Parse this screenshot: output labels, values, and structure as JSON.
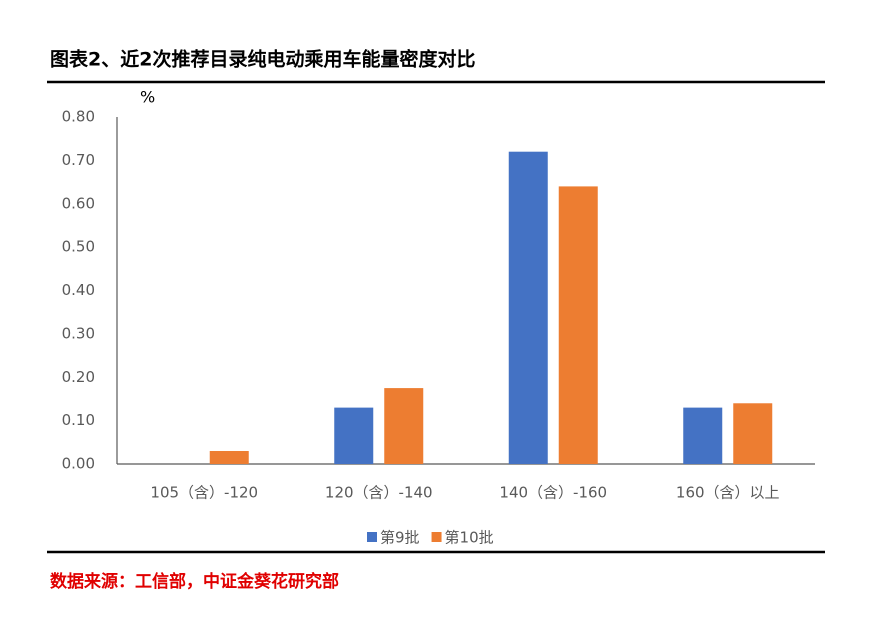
{
  "chart_data": {
    "type": "bar",
    "title": "图表2、近2次推荐目录纯电动乘用车能量密度对比",
    "y_label": "%",
    "categories": [
      "105（含）-120",
      "120（含）-140",
      "140（含）-160",
      "160（含）以上"
    ],
    "series": [
      {
        "name": "第9批",
        "color": "#4472c4",
        "values": [
          0,
          0.13,
          0.72,
          0.13
        ]
      },
      {
        "name": "第10批",
        "color": "#ed7d31",
        "values": [
          0.03,
          0.175,
          0.64,
          0.14
        ]
      }
    ],
    "ylim": [
      0,
      0.8
    ],
    "yticks": [
      {
        "value": 0,
        "label": "0.00"
      },
      {
        "value": 0.1,
        "label": "0.10"
      },
      {
        "value": 0.2,
        "label": "0.20"
      },
      {
        "value": 0.3,
        "label": "0.30"
      },
      {
        "value": 0.4,
        "label": "0.40"
      },
      {
        "value": 0.5,
        "label": "0.50"
      },
      {
        "value": 0.6,
        "label": "0.60"
      },
      {
        "value": 0.7,
        "label": "0.70"
      },
      {
        "value": 0.8,
        "label": "0.80"
      }
    ],
    "legend": "bottom",
    "source": "数据来源：工信部，中证金葵花研究部"
  }
}
